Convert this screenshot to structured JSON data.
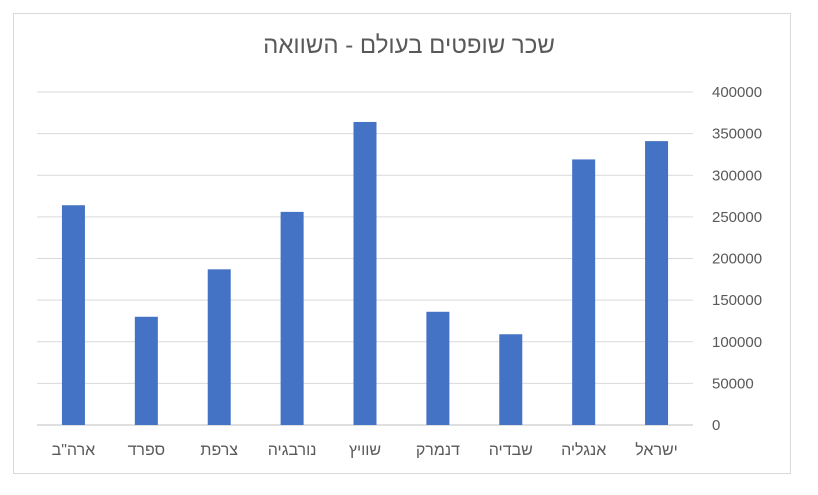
{
  "chart_data": {
    "type": "bar",
    "title": "שכר שופטים בעולם - השוואה",
    "categories": [
      "ארה\"ב",
      "ספרד",
      "צרפת",
      "נורבגיה",
      "שוויץ",
      "דנמרק",
      "שבדיה",
      "אנגליה",
      "ישראל"
    ],
    "values": [
      264000,
      130000,
      187000,
      256000,
      364000,
      136000,
      109000,
      319000,
      341000
    ],
    "ylim": [
      0,
      400000
    ],
    "yticks": [
      0,
      50000,
      100000,
      150000,
      200000,
      250000,
      300000,
      350000,
      400000
    ],
    "xlabel": "",
    "ylabel": "",
    "grid": true,
    "legend": "none",
    "bar_color": "#4472c4",
    "axis_position": "right"
  }
}
